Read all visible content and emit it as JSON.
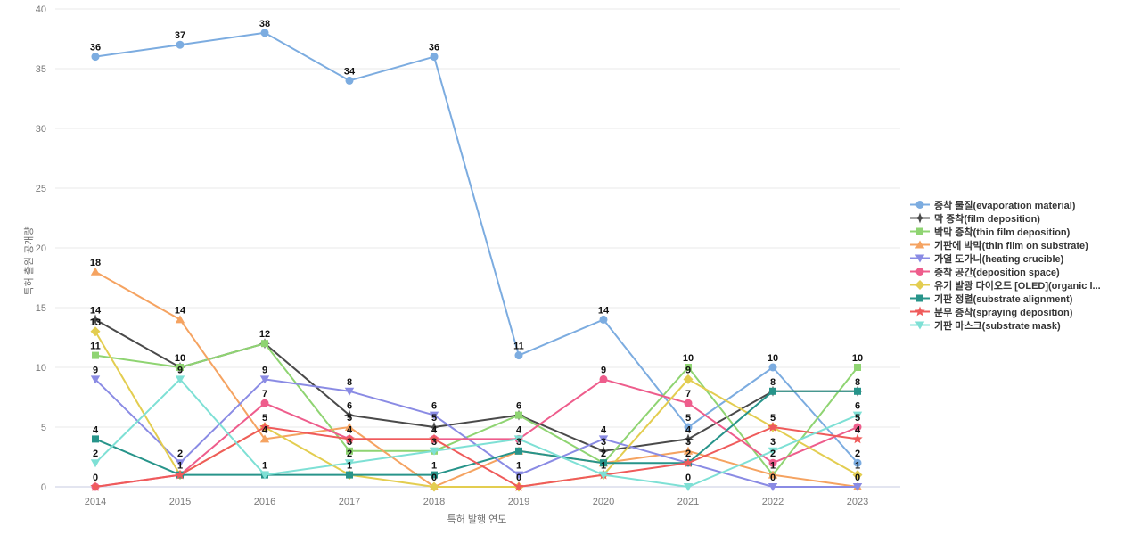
{
  "chart_data": {
    "type": "line",
    "title": "",
    "xlabel": "특허 발행 연도",
    "ylabel": "특허 출원 공개량",
    "x": [
      2014,
      2015,
      2016,
      2017,
      2018,
      2019,
      2020,
      2021,
      2022,
      2023
    ],
    "ylim": [
      0,
      40
    ],
    "yticks": [
      0,
      5,
      10,
      15,
      20,
      25,
      30,
      35,
      40
    ],
    "grid": true,
    "legend_position": "right",
    "series": [
      {
        "name": "증착 물질(evaporation material)",
        "color": "#7cace0",
        "marker": "circle",
        "values": [
          36,
          37,
          38,
          34,
          36,
          11,
          14,
          5,
          10,
          2
        ]
      },
      {
        "name": "막 증착(film deposition)",
        "color": "#4a4a4a",
        "marker": "star4",
        "values": [
          14,
          10,
          12,
          6,
          5,
          6,
          3,
          4,
          8,
          8
        ]
      },
      {
        "name": "박막 증착(thin film deposition)",
        "color": "#8fd472",
        "marker": "square",
        "values": [
          11,
          10,
          12,
          3,
          3,
          6,
          2,
          10,
          1,
          10
        ]
      },
      {
        "name": "기판에 박막(thin film on substrate)",
        "color": "#f5a361",
        "marker": "triangle-up",
        "values": [
          18,
          14,
          4,
          5,
          0,
          3,
          2,
          3,
          1,
          0
        ]
      },
      {
        "name": "가열 도가니(heating crucible)",
        "color": "#8a8be4",
        "marker": "triangle-down",
        "values": [
          9,
          2,
          9,
          8,
          6,
          1,
          4,
          2,
          0,
          0
        ]
      },
      {
        "name": "증착 공간(deposition space)",
        "color": "#ee5d8c",
        "marker": "circle",
        "values": [
          0,
          1,
          7,
          4,
          4,
          4,
          9,
          7,
          2,
          5
        ]
      },
      {
        "name": "유기 발광 다이오드 [OLED](organic l...",
        "color": "#e3cd50",
        "marker": "diamond",
        "values": [
          13,
          1,
          5,
          1,
          0,
          0,
          1,
          9,
          5,
          1
        ]
      },
      {
        "name": "기판 정렬(substrate alignment)",
        "color": "#27948a",
        "marker": "square",
        "values": [
          4,
          1,
          1,
          1,
          1,
          3,
          2,
          2,
          8,
          8
        ]
      },
      {
        "name": "분무 증착(spraying deposition)",
        "color": "#ef5b5b",
        "marker": "star5",
        "values": [
          0,
          1,
          5,
          4,
          4,
          0,
          1,
          2,
          5,
          4
        ]
      },
      {
        "name": "기판 마스크(substrate mask)",
        "color": "#7ee0d5",
        "marker": "triangle-down",
        "values": [
          2,
          9,
          1,
          2,
          3,
          4,
          1,
          0,
          3,
          6
        ]
      }
    ]
  }
}
